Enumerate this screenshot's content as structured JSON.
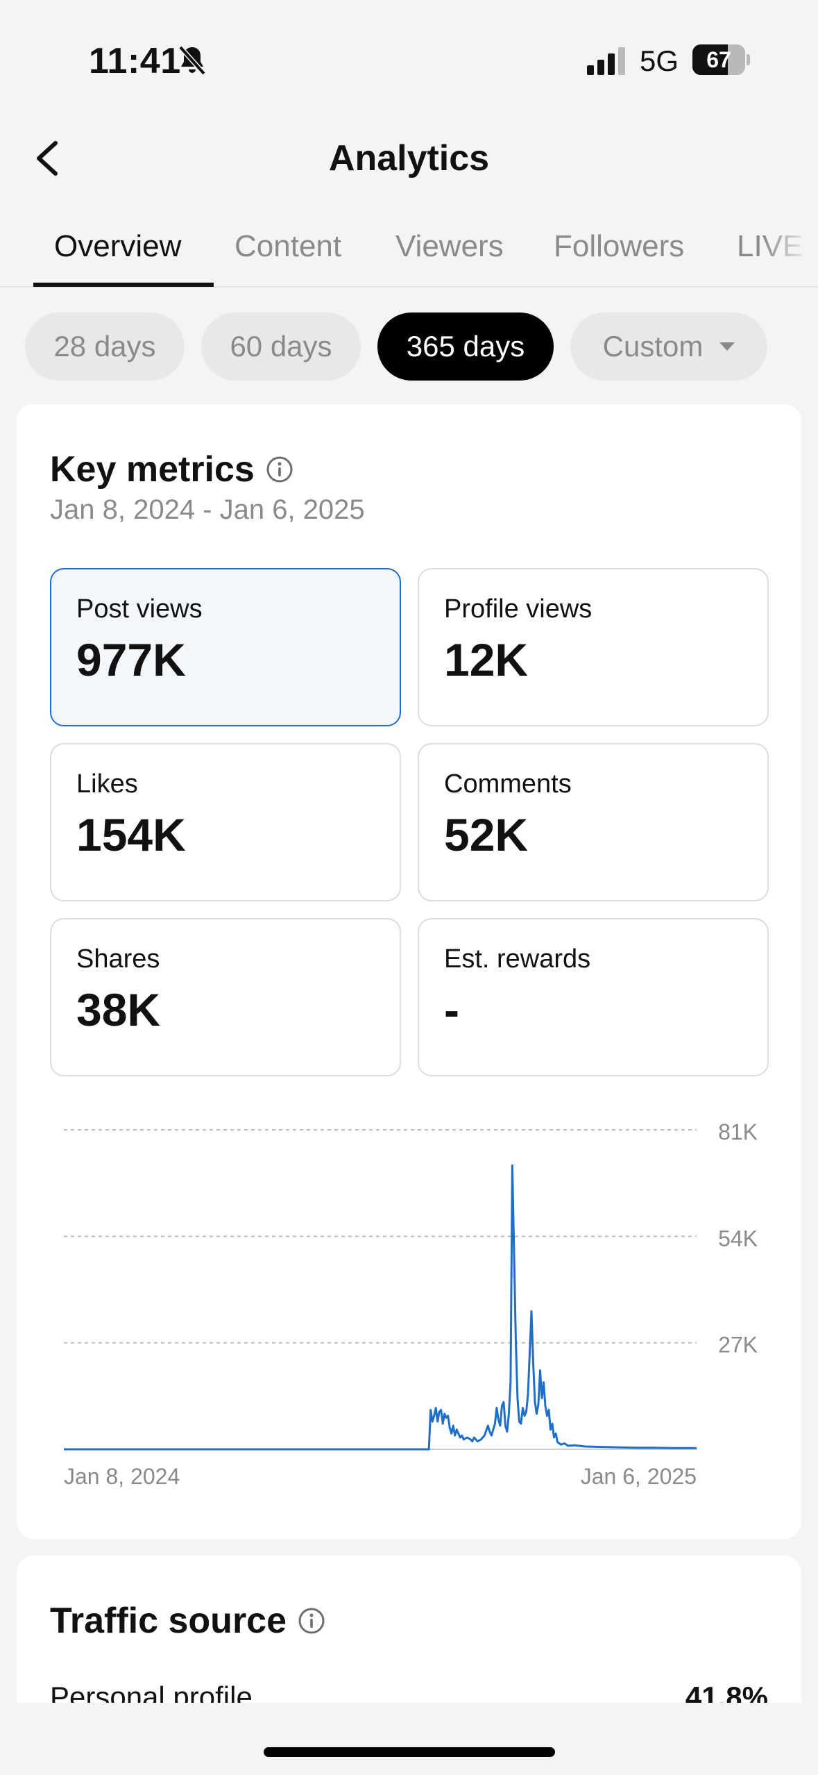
{
  "status_bar": {
    "time": "11:41",
    "network": "5G",
    "battery_level": "67",
    "battery_fraction": 0.67
  },
  "header": {
    "title": "Analytics"
  },
  "tabs": [
    {
      "label": "Overview",
      "active": true
    },
    {
      "label": "Content",
      "active": false
    },
    {
      "label": "Viewers",
      "active": false
    },
    {
      "label": "Followers",
      "active": false
    },
    {
      "label": "LIVE",
      "active": false
    }
  ],
  "ranges": [
    {
      "label": "28 days",
      "active": false
    },
    {
      "label": "60 days",
      "active": false
    },
    {
      "label": "365 days",
      "active": true
    },
    {
      "label": "Custom",
      "active": false
    }
  ],
  "key_metrics": {
    "title": "Key metrics",
    "date_range": "Jan 8, 2024 - Jan 6, 2025",
    "items": [
      {
        "label": "Post views",
        "value": "977K",
        "selected": true
      },
      {
        "label": "Profile views",
        "value": "12K",
        "selected": false
      },
      {
        "label": "Likes",
        "value": "154K",
        "selected": false
      },
      {
        "label": "Comments",
        "value": "52K",
        "selected": false
      },
      {
        "label": "Shares",
        "value": "38K",
        "selected": false
      },
      {
        "label": "Est. rewards",
        "value": "-",
        "selected": false
      }
    ]
  },
  "chart_data": {
    "type": "line",
    "series_color": "#1f6fc9",
    "x_labels": [
      "Jan 8, 2024",
      "Jan 6, 2025"
    ],
    "y_ticks": [
      {
        "value": 81000,
        "label": "81K"
      },
      {
        "value": 54000,
        "label": "54K"
      },
      {
        "value": 27000,
        "label": "27K"
      }
    ],
    "ylim": [
      0,
      81000
    ],
    "grid": true,
    "series": [
      {
        "values": [
          [
            0,
            0
          ],
          [
            210,
            0
          ],
          [
            211,
            10000
          ],
          [
            212,
            7000
          ],
          [
            213,
            8500
          ],
          [
            214,
            10500
          ],
          [
            215,
            7000
          ],
          [
            216,
            9500
          ],
          [
            217,
            10000
          ],
          [
            218,
            6500
          ],
          [
            219,
            9000
          ],
          [
            220,
            8000
          ],
          [
            221,
            8500
          ],
          [
            222,
            5500
          ],
          [
            223,
            4000
          ],
          [
            224,
            6000
          ],
          [
            225,
            3500
          ],
          [
            226,
            5000
          ],
          [
            227,
            4000
          ],
          [
            228,
            3000
          ],
          [
            229,
            3500
          ],
          [
            230,
            2500
          ],
          [
            232,
            3000
          ],
          [
            234,
            2500
          ],
          [
            235,
            2000
          ],
          [
            236,
            3000
          ],
          [
            238,
            2000
          ],
          [
            240,
            2500
          ],
          [
            242,
            3500
          ],
          [
            244,
            6000
          ],
          [
            245,
            4500
          ],
          [
            246,
            3500
          ],
          [
            247,
            5000
          ],
          [
            248,
            6500
          ],
          [
            249,
            10500
          ],
          [
            250,
            7500
          ],
          [
            251,
            6000
          ],
          [
            252,
            11000
          ],
          [
            253,
            12000
          ],
          [
            254,
            6000
          ],
          [
            255,
            4500
          ],
          [
            256,
            9000
          ],
          [
            257,
            17000
          ],
          [
            258,
            72000
          ],
          [
            259,
            50000
          ],
          [
            260,
            28000
          ],
          [
            261,
            13000
          ],
          [
            262,
            7000
          ],
          [
            263,
            6500
          ],
          [
            264,
            10500
          ],
          [
            265,
            8500
          ],
          [
            266,
            9500
          ],
          [
            267,
            14000
          ],
          [
            268,
            24500
          ],
          [
            269,
            35000
          ],
          [
            270,
            22000
          ],
          [
            271,
            12000
          ],
          [
            272,
            9000
          ],
          [
            273,
            11500
          ],
          [
            274,
            20000
          ],
          [
            275,
            13000
          ],
          [
            276,
            17000
          ],
          [
            277,
            11000
          ],
          [
            278,
            8500
          ],
          [
            279,
            10000
          ],
          [
            280,
            5000
          ],
          [
            281,
            6500
          ],
          [
            282,
            3000
          ],
          [
            283,
            4000
          ],
          [
            284,
            1800
          ],
          [
            286,
            1200
          ],
          [
            288,
            1500
          ],
          [
            290,
            900
          ],
          [
            294,
            1000
          ],
          [
            300,
            700
          ],
          [
            310,
            600
          ],
          [
            320,
            500
          ],
          [
            330,
            400
          ],
          [
            340,
            400
          ],
          [
            350,
            300
          ],
          [
            364,
            300
          ]
        ]
      }
    ],
    "x_domain": [
      0,
      364
    ]
  },
  "traffic_source": {
    "title": "Traffic source",
    "rows": [
      {
        "label": "Personal profile",
        "value": "41.8%"
      }
    ]
  }
}
